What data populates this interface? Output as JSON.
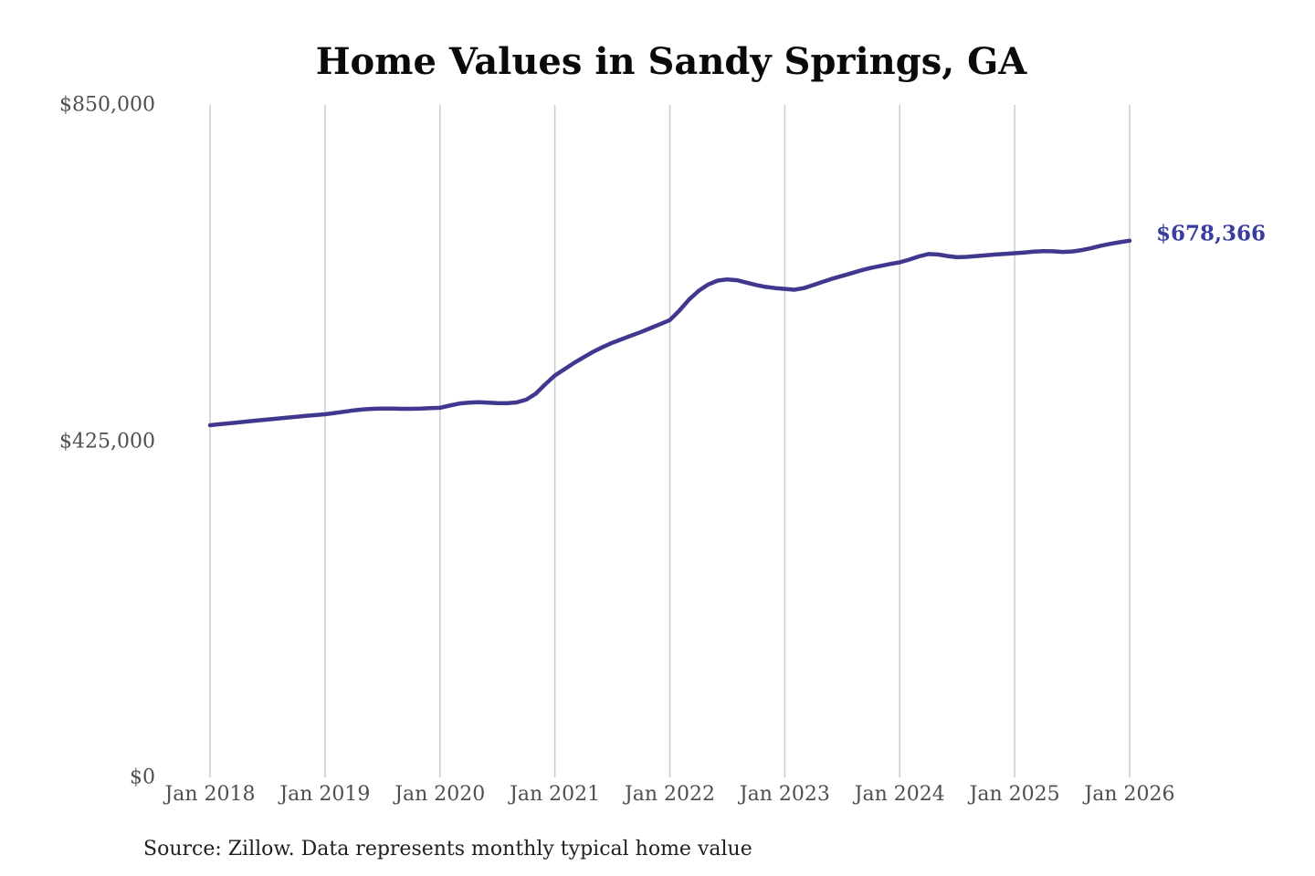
{
  "title": "Home Values in Sandy Springs, GA",
  "end_label": "$678,366",
  "source": "Source: Zillow. Data represents monthly typical home value",
  "y_axis": {
    "ticks": [
      {
        "label": "$850,000",
        "value": 850000
      },
      {
        "label": "$425,000",
        "value": 425000
      },
      {
        "label": "$0",
        "value": 0
      }
    ]
  },
  "x_axis": {
    "labels": [
      "Jan 2018",
      "Jan 2019",
      "Jan 2020",
      "Jan 2021",
      "Jan 2022",
      "Jan 2023",
      "Jan 2024",
      "Jan 2025",
      "Jan 2026"
    ]
  },
  "colors": {
    "line": "#40388f",
    "end_label": "#3b3d9e",
    "gridline": "#cbcbcb",
    "axis_text": "#4f4f4f",
    "title_text": "#0a0a0a",
    "source_text": "#1f1f1f",
    "background": "#ffffff"
  },
  "chart_data": {
    "type": "line",
    "title": "Home Values in Sandy Springs, GA",
    "series_name": "Monthly typical home value",
    "unit": "USD",
    "start_month": "2018-01",
    "frequency": "monthly",
    "grid": "vertical-only",
    "ylim": [
      0,
      850000
    ],
    "y_tick_values": [
      0,
      425000,
      850000
    ],
    "x_tick_labels": [
      "Jan 2018",
      "Jan 2019",
      "Jan 2020",
      "Jan 2021",
      "Jan 2022",
      "Jan 2023",
      "Jan 2024",
      "Jan 2025",
      "Jan 2026"
    ],
    "final_value": 678366,
    "final_value_label": "$678,366",
    "values": [
      445200,
      446400,
      447600,
      448800,
      450000,
      451200,
      452400,
      453600,
      454700,
      455800,
      456900,
      458000,
      459000,
      460600,
      462300,
      464000,
      465300,
      466000,
      466300,
      466200,
      465900,
      465900,
      466200,
      466700,
      467200,
      470000,
      472500,
      473800,
      474200,
      473800,
      473200,
      473000,
      474000,
      477500,
      485000,
      497000,
      508000,
      516000,
      524000,
      531000,
      538000,
      544000,
      549500,
      554000,
      558500,
      563000,
      568000,
      573000,
      578000,
      590000,
      604000,
      615000,
      623000,
      628000,
      629500,
      628500,
      625500,
      622500,
      620000,
      618500,
      617500,
      616500,
      618500,
      622500,
      626500,
      630500,
      634000,
      637500,
      641000,
      644000,
      646500,
      649000,
      651000,
      654500,
      658500,
      661500,
      661000,
      659000,
      657500,
      658000,
      659000,
      660000,
      661000,
      661800,
      662600,
      663500,
      664500,
      665200,
      665000,
      664200,
      664800,
      666500,
      669000,
      672000,
      674500,
      676500,
      678366
    ]
  }
}
